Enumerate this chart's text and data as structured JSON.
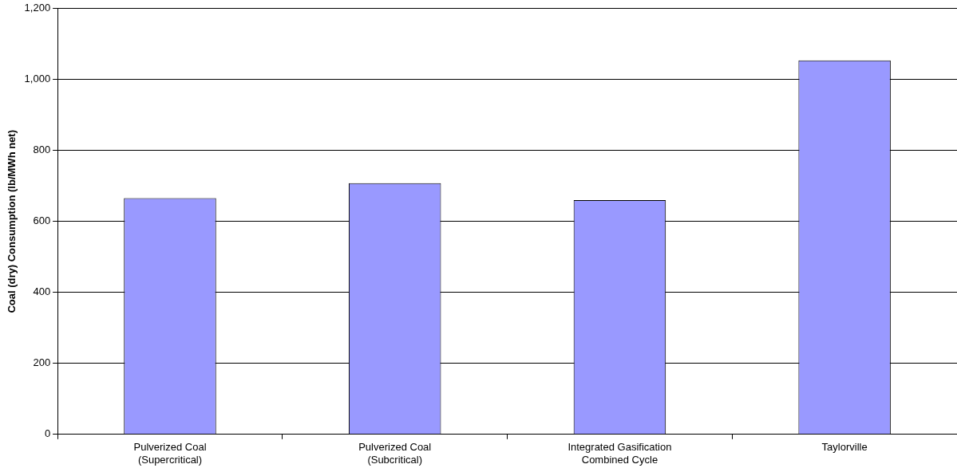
{
  "chart_data": {
    "type": "bar",
    "ylabel": "Coal (dry) Consumption (lb/MWh net)",
    "categories": [
      "Pulverized Coal\n(Supercritical)",
      "Pulverized Coal\n(Subcritical)",
      "Integrated Gasification\nCombined Cycle",
      "Taylorville"
    ],
    "values": [
      666,
      708,
      660,
      1054
    ],
    "color": "#9999ff",
    "ylim": [
      0,
      1200
    ],
    "yticks": [
      0,
      200,
      400,
      600,
      800,
      {
        "value": 1000,
        "label": "1,000"
      },
      {
        "value": 1200,
        "label": "1,200"
      }
    ],
    "grid": "y",
    "legend": false
  }
}
